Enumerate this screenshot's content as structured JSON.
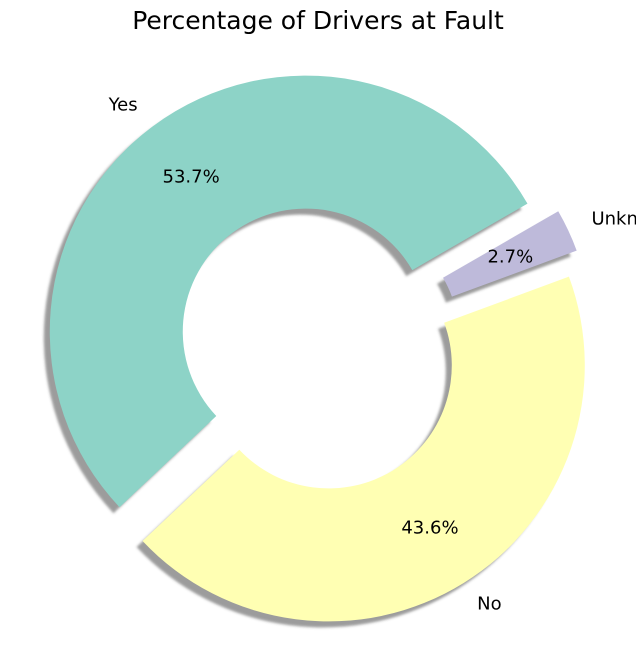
{
  "chart_data": {
    "type": "pie",
    "title": "Percentage of Drivers at Fault",
    "donut": true,
    "shadow": true,
    "start_angle_deg": 30,
    "explode": [
      0.08,
      0.08,
      0.08
    ],
    "slices": [
      {
        "label": "Yes",
        "value": 53.7,
        "pct_label": "53.7%",
        "color": "#8dd3c7"
      },
      {
        "label": "No",
        "value": 43.6,
        "pct_label": "43.6%",
        "color": "#ffffb3"
      },
      {
        "label": "Unknown",
        "value": 2.7,
        "pct_label": "2.7%",
        "color": "#bebada"
      }
    ]
  }
}
